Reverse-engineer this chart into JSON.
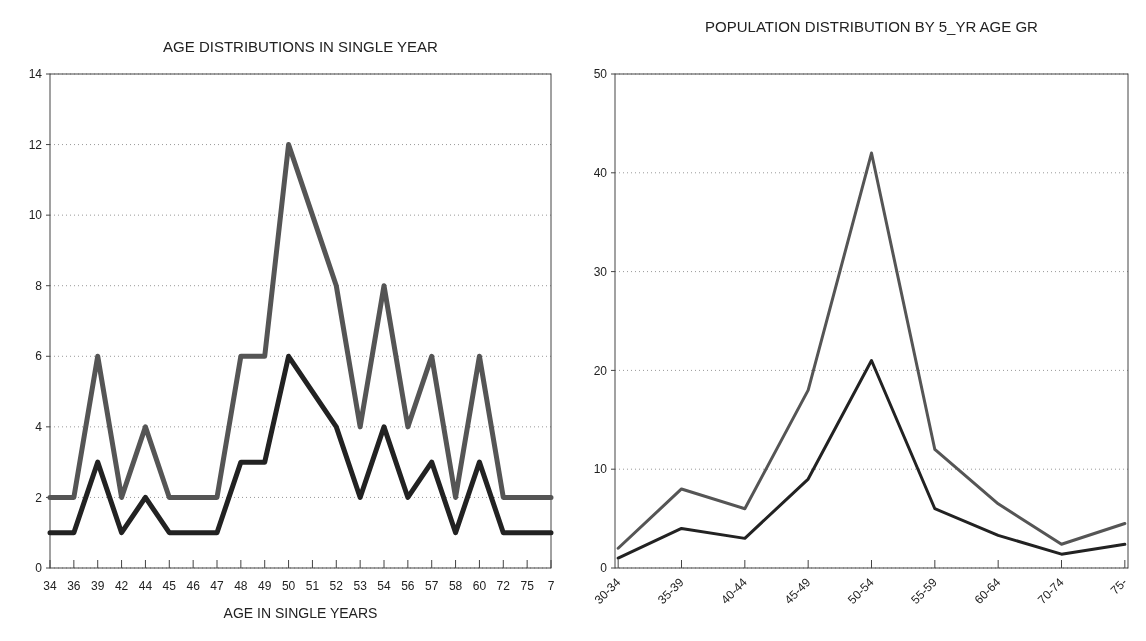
{
  "chart_data": [
    {
      "type": "line",
      "title": "AGE DISTRIBUTIONS IN SINGLE YEAR",
      "xlabel": "AGE IN SINGLE YEARS",
      "categories": [
        "34",
        "36",
        "39",
        "42",
        "44",
        "45",
        "46",
        "47",
        "48",
        "49",
        "50",
        "51",
        "52",
        "53",
        "54",
        "56",
        "57",
        "58",
        "60",
        "72",
        "75",
        "7"
      ],
      "series": [
        {
          "color": "#555555",
          "values": [
            2,
            2,
            6,
            2,
            4,
            2,
            2,
            2,
            6,
            6,
            12,
            10,
            8,
            4,
            8,
            4,
            6,
            2,
            6,
            2,
            2,
            2
          ]
        },
        {
          "color": "#222222",
          "values": [
            1,
            1,
            3,
            1,
            2,
            1,
            1,
            1,
            3,
            3,
            6,
            5,
            4,
            2,
            4,
            2,
            3,
            1,
            3,
            1,
            1,
            1
          ]
        }
      ],
      "ylim": [
        0,
        14
      ],
      "yticks": [
        0,
        2,
        4,
        6,
        8,
        10,
        12,
        14
      ],
      "grid": "y",
      "marker": "none",
      "line_style": "solid"
    },
    {
      "type": "line",
      "title": "POPULATION DISTRIBUTION BY 5_YR AGE GR",
      "categories": [
        "30-34",
        "35-39",
        "40-44",
        "45-49",
        "50-54",
        "55-59",
        "60-64",
        "70-74",
        "75-"
      ],
      "series": [
        {
          "color": "#555555",
          "values": [
            2,
            8,
            6,
            18,
            42,
            12,
            6.5,
            2.4,
            4.5
          ]
        },
        {
          "color": "#222222",
          "values": [
            1,
            4,
            3,
            9,
            21,
            6,
            3.3,
            1.4,
            2.4
          ]
        }
      ],
      "ylim": [
        0,
        50
      ],
      "yticks": [
        0,
        10,
        20,
        30,
        40,
        50
      ],
      "grid": "y",
      "marker": "none",
      "line_style": "solid"
    }
  ]
}
